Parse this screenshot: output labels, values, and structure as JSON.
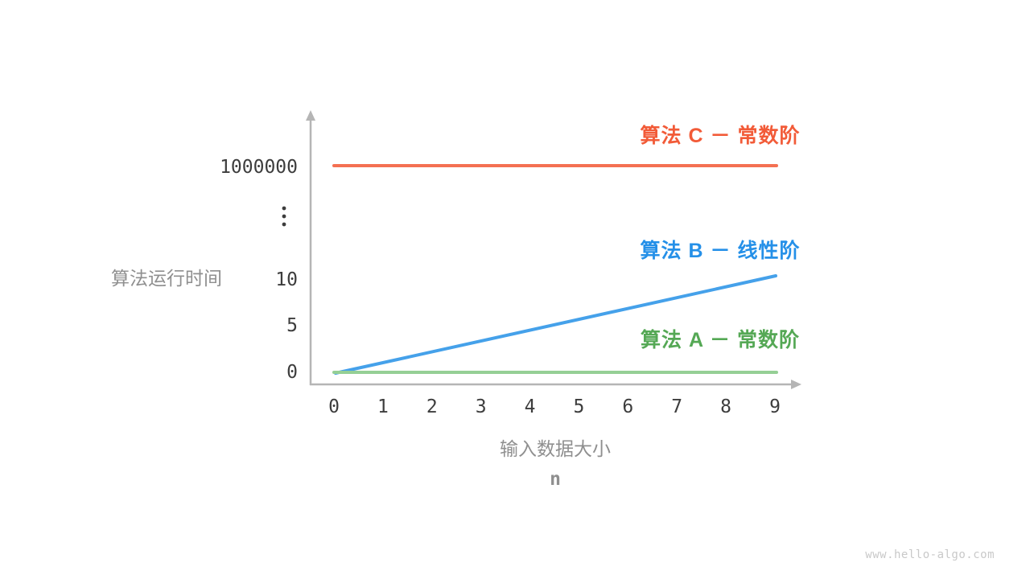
{
  "chart_data": {
    "type": "line",
    "title": "",
    "xlabel": "输入数据大小",
    "xlabel_unit": "n",
    "ylabel": "算法运行时间",
    "x_ticks": [
      "0",
      "1",
      "2",
      "3",
      "4",
      "5",
      "6",
      "7",
      "8",
      "9"
    ],
    "y_ticks": [
      "0",
      "5",
      "10",
      "⋮",
      "1000000"
    ],
    "x_range": [
      0,
      9
    ],
    "axis_break": true,
    "grid": false,
    "legend_position": "right-of-lines",
    "series": [
      {
        "id": "C",
        "label": "算法 C － 常数阶",
        "complexity": "常数阶",
        "line_color": "#F47052",
        "label_color": "#F25B38",
        "x": [
          0,
          9
        ],
        "y": [
          1000000,
          1000000
        ]
      },
      {
        "id": "B",
        "label": "算法 B － 线性阶",
        "complexity": "线性阶",
        "line_color": "#45A1EA",
        "label_color": "#2590E8",
        "x": [
          0,
          9
        ],
        "y": [
          0,
          10
        ]
      },
      {
        "id": "A",
        "label": "算法 A － 常数阶",
        "complexity": "常数阶",
        "line_color": "#95CF95",
        "label_color": "#55A855",
        "x": [
          0,
          9
        ],
        "y": [
          1,
          1
        ]
      }
    ],
    "colors": {
      "axis": "#b5b5b5",
      "tick_text": "#3d3d3d",
      "axis_title": "#8f8f8f"
    }
  },
  "watermark": "www.hello-algo.com"
}
